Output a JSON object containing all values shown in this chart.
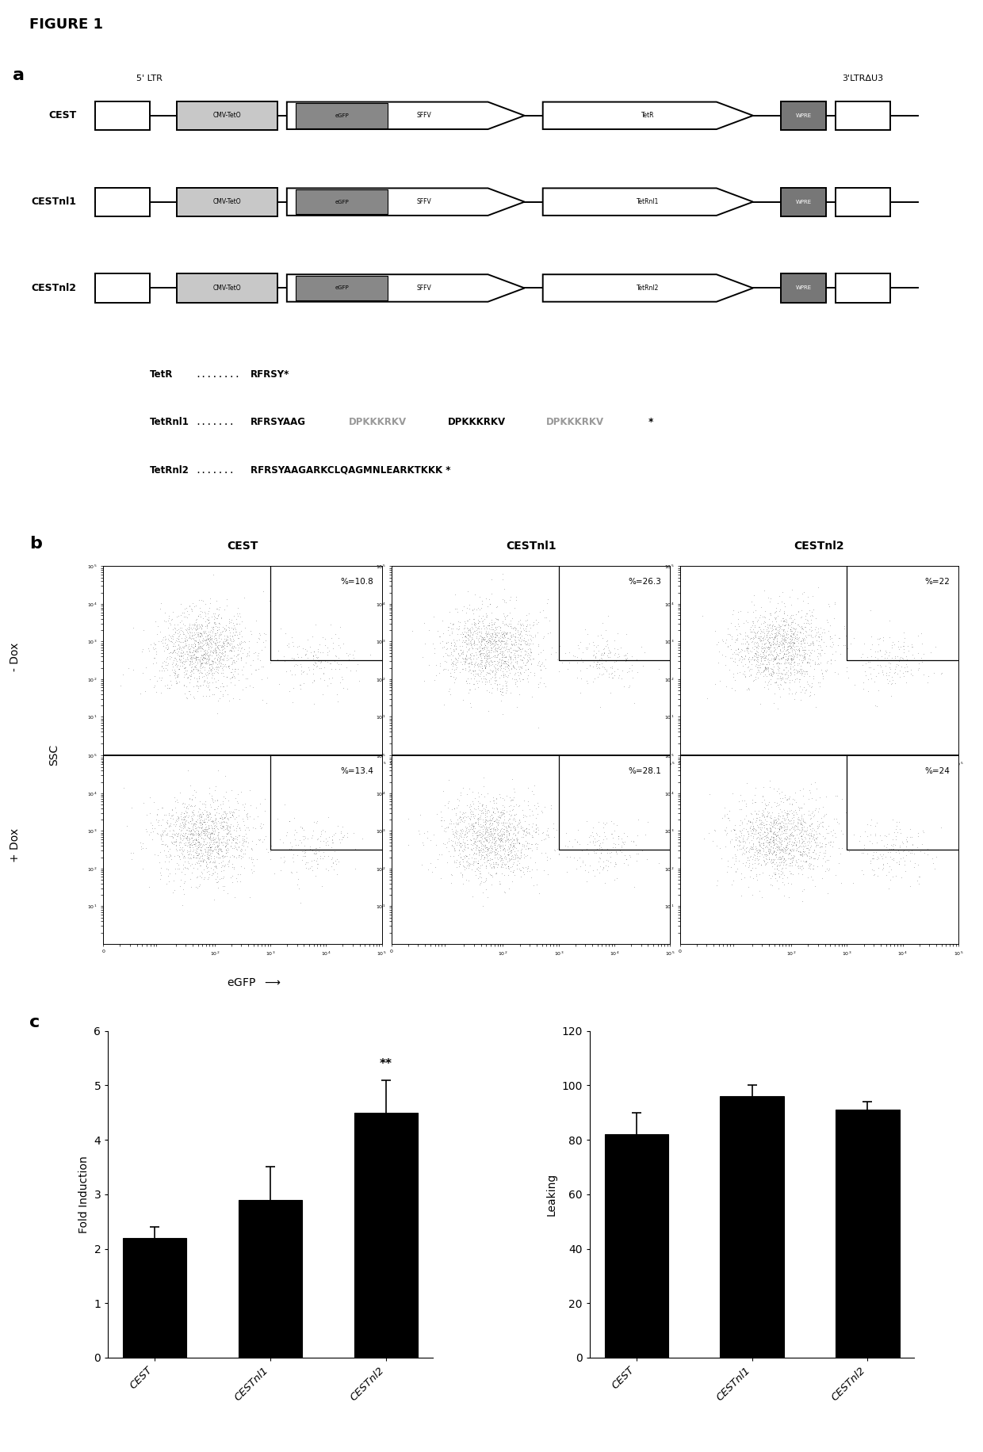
{
  "figure_label": "FIGURE 1",
  "panel_a_label": "a",
  "panel_b_label": "b",
  "panel_c_label": "c",
  "construct_names": [
    "CEST",
    "CESTnl1",
    "CESTnl2"
  ],
  "ltr5_label": "5' LTR",
  "ltr3_label": "3'LTRΔU3",
  "tetr_label": "TetR",
  "tetnl1_label": "TetRnl1",
  "tetnl2_label": "TetRnl2",
  "wpre_label": "WPRE",
  "cmv_label": "CMV-TetO",
  "egfp_label_box": "eGFP",
  "sffv_label": "SFFV",
  "flow_titles": [
    "CEST",
    "CESTnl1",
    "CESTnl2"
  ],
  "flow_minus_dox_percentages": [
    "%=10.8",
    "%=26.3",
    "%=22"
  ],
  "flow_plus_dox_percentages": [
    "%=13.4",
    "%=28.1",
    "%=24"
  ],
  "dox_labels": [
    "- Dox",
    "+ Dox"
  ],
  "egfp_axis_label": "eGFP",
  "ssc_label": "SSC",
  "bar_fold_induction": [
    2.2,
    2.9,
    4.5
  ],
  "bar_fold_errors": [
    0.2,
    0.6,
    0.6
  ],
  "bar_leaking": [
    82,
    96,
    91
  ],
  "bar_leaking_errors": [
    8,
    4,
    3
  ],
  "fold_ylabel": "Fold Induction",
  "leaking_ylabel": "Leaking",
  "fold_ylim": [
    0,
    6
  ],
  "leaking_ylim": [
    0,
    120
  ],
  "fold_yticks": [
    0,
    1,
    2,
    3,
    4,
    5,
    6
  ],
  "leaking_yticks": [
    0,
    20,
    40,
    60,
    80,
    100,
    120
  ],
  "bar_xtick_labels": [
    "CEST",
    "CESTnl1",
    "CESTnl2"
  ],
  "significance_label": "**",
  "bar_color": "#000000",
  "background_color": "#ffffff",
  "seq_tetr": "RFRSY*",
  "seq_nl1_black1": "RFRSYAAG",
  "seq_nl1_gray1": "DPKKKRKV",
  "seq_nl1_black2": "DPKKKRKV",
  "seq_nl1_gray2": "DPKKKRKV",
  "seq_nl1_end": " *",
  "seq_nl2": "RFRSYAAGARKCLQAGMNLEARKTKKK *"
}
